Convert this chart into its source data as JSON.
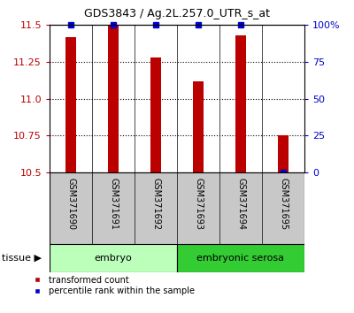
{
  "title": "GDS3843 / Ag.2L.257.0_UTR_s_at",
  "samples": [
    "GSM371690",
    "GSM371691",
    "GSM371692",
    "GSM371693",
    "GSM371694",
    "GSM371695"
  ],
  "red_values": [
    11.42,
    11.5,
    11.28,
    11.12,
    11.43,
    10.75
  ],
  "blue_percentiles": [
    100,
    100,
    100,
    100,
    100,
    0
  ],
  "ylim_left": [
    10.5,
    11.5
  ],
  "ylim_right": [
    0,
    100
  ],
  "yticks_left": [
    10.5,
    10.75,
    11.0,
    11.25,
    11.5
  ],
  "yticks_right": [
    0,
    25,
    50,
    75,
    100
  ],
  "groups": [
    {
      "label": "embryo",
      "indices": [
        0,
        1,
        2
      ],
      "color": "#bbffbb"
    },
    {
      "label": "embryonic serosa",
      "indices": [
        3,
        4,
        5
      ],
      "color": "#33cc33"
    }
  ],
  "group_label": "tissue",
  "red_color": "#bb0000",
  "blue_color": "#0000cc",
  "bar_width": 0.25,
  "background_color": "#ffffff",
  "sample_bg_color": "#c8c8c8",
  "legend_red_label": "transformed count",
  "legend_blue_label": "percentile rank within the sample"
}
